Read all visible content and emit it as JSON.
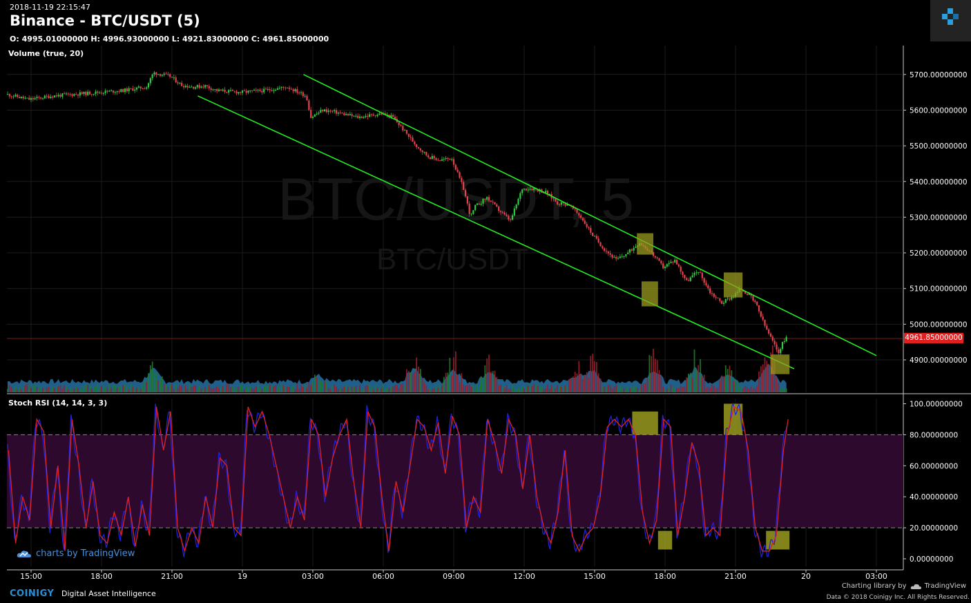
{
  "header": {
    "timestamp": "2018-11-19 22:15:47",
    "title": "Binance - BTC/USDT (5)",
    "ohlc": "O: 4995.01000000 H: 4996.93000000 L: 4921.83000000 C: 4961.85000000"
  },
  "watermark": {
    "symbol_interval": "BTC/USDT, 5",
    "symbol": "BTC/USDT"
  },
  "indicators": {
    "volume_label": "Volume (true, 20)",
    "stoch_label": "Stoch RSI (14, 14, 3, 3)"
  },
  "last_price": "4961.85000000",
  "footer": {
    "tv_brand": "charts by TradingView",
    "coinigy": "COINIGY",
    "coinigy_tagline": "Digital Asset Intelligence",
    "charting_credit": "Charting library by",
    "tv_name": "TradingView",
    "copyright": "Data © 2018 Coinigy Inc. All Rights Reserved."
  },
  "colors": {
    "up": "#2ecc40",
    "down": "#e8414e",
    "trendline": "#22ee22",
    "highlight": "#9a9a20",
    "stoch_k": "#2222dd",
    "stoch_d": "#dd2222",
    "stoch_band": "#2d0a2d",
    "volume_ma": "#2a7fb8"
  },
  "chart_data": {
    "type": "candlestick",
    "price_axis": {
      "ticks": [
        "5700.00000000",
        "5600.00000000",
        "5500.00000000",
        "5400.00000000",
        "5300.00000000",
        "5200.00000000",
        "5100.00000000",
        "5000.00000000",
        "4900.00000000"
      ],
      "ylim": [
        4850,
        5750
      ]
    },
    "stoch_axis": {
      "ticks": [
        "100.00000000",
        "80.00000000",
        "60.00000000",
        "40.00000000",
        "20.00000000",
        "0.00000000"
      ],
      "ylim": [
        -4,
        103
      ],
      "overbought": 80,
      "oversold": 20
    },
    "time_axis": {
      "labels": [
        "15:00",
        "18:00",
        "21:00",
        "19",
        "03:00",
        "06:00",
        "09:00",
        "12:00",
        "15:00",
        "18:00",
        "21:00",
        "20",
        "03:00"
      ],
      "hours": [
        15,
        18,
        21,
        24,
        27,
        30,
        33,
        36,
        39,
        42,
        45,
        48,
        51
      ]
    },
    "price_path": [
      [
        14,
        5645
      ],
      [
        15,
        5630
      ],
      [
        16,
        5640
      ],
      [
        17,
        5645
      ],
      [
        18,
        5650
      ],
      [
        19,
        5655
      ],
      [
        20,
        5665
      ],
      [
        20.3,
        5705
      ],
      [
        21,
        5695
      ],
      [
        21.5,
        5670
      ],
      [
        22,
        5665
      ],
      [
        22.5,
        5668
      ],
      [
        23,
        5655
      ],
      [
        24,
        5650
      ],
      [
        25,
        5655
      ],
      [
        26,
        5665
      ],
      [
        26.8,
        5640
      ],
      [
        27,
        5580
      ],
      [
        27.5,
        5600
      ],
      [
        28,
        5595
      ],
      [
        29,
        5580
      ],
      [
        30,
        5590
      ],
      [
        30.5,
        5580
      ],
      [
        31,
        5540
      ],
      [
        31.5,
        5500
      ],
      [
        32,
        5470
      ],
      [
        32.5,
        5460
      ],
      [
        33,
        5465
      ],
      [
        33.2,
        5430
      ],
      [
        33.5,
        5380
      ],
      [
        33.8,
        5300
      ],
      [
        34,
        5330
      ],
      [
        34.5,
        5355
      ],
      [
        35,
        5320
      ],
      [
        35.5,
        5290
      ],
      [
        36,
        5380
      ],
      [
        36.5,
        5380
      ],
      [
        37,
        5370
      ],
      [
        37.5,
        5340
      ],
      [
        38,
        5335
      ],
      [
        38.5,
        5300
      ],
      [
        39,
        5250
      ],
      [
        39.5,
        5210
      ],
      [
        40,
        5180
      ],
      [
        40.5,
        5200
      ],
      [
        41,
        5230
      ],
      [
        41.5,
        5200
      ],
      [
        42,
        5160
      ],
      [
        42.5,
        5180
      ],
      [
        43,
        5120
      ],
      [
        43.5,
        5150
      ],
      [
        44,
        5090
      ],
      [
        44.5,
        5060
      ],
      [
        45,
        5080
      ],
      [
        45.3,
        5100
      ],
      [
        45.7,
        5080
      ],
      [
        46,
        5050
      ],
      [
        46.3,
        5000
      ],
      [
        46.6,
        4960
      ],
      [
        46.9,
        4920
      ],
      [
        47.2,
        4962
      ]
    ],
    "stoch_path": [
      [
        14,
        70
      ],
      [
        14.3,
        10
      ],
      [
        14.6,
        40
      ],
      [
        14.9,
        25
      ],
      [
        15.2,
        90
      ],
      [
        15.5,
        82
      ],
      [
        15.8,
        20
      ],
      [
        16.1,
        60
      ],
      [
        16.4,
        5
      ],
      [
        16.7,
        90
      ],
      [
        17,
        60
      ],
      [
        17.3,
        20
      ],
      [
        17.6,
        50
      ],
      [
        17.9,
        15
      ],
      [
        18.2,
        10
      ],
      [
        18.5,
        30
      ],
      [
        18.8,
        15
      ],
      [
        19.1,
        40
      ],
      [
        19.4,
        8
      ],
      [
        19.7,
        35
      ],
      [
        20,
        15
      ],
      [
        20.3,
        98
      ],
      [
        20.6,
        70
      ],
      [
        20.9,
        95
      ],
      [
        21.2,
        20
      ],
      [
        21.5,
        5
      ],
      [
        21.8,
        20
      ],
      [
        22.1,
        10
      ],
      [
        22.4,
        40
      ],
      [
        22.7,
        20
      ],
      [
        23,
        65
      ],
      [
        23.3,
        60
      ],
      [
        23.6,
        20
      ],
      [
        23.9,
        15
      ],
      [
        24.2,
        98
      ],
      [
        24.5,
        85
      ],
      [
        24.8,
        95
      ],
      [
        25.1,
        80
      ],
      [
        25.4,
        60
      ],
      [
        25.7,
        40
      ],
      [
        26,
        20
      ],
      [
        26.3,
        40
      ],
      [
        26.6,
        25
      ],
      [
        26.9,
        90
      ],
      [
        27.2,
        80
      ],
      [
        27.5,
        40
      ],
      [
        27.8,
        65
      ],
      [
        28.1,
        80
      ],
      [
        28.4,
        90
      ],
      [
        28.7,
        50
      ],
      [
        29,
        20
      ],
      [
        29.3,
        95
      ],
      [
        29.6,
        85
      ],
      [
        29.9,
        40
      ],
      [
        30.2,
        5
      ],
      [
        30.5,
        50
      ],
      [
        30.8,
        30
      ],
      [
        31.1,
        60
      ],
      [
        31.4,
        90
      ],
      [
        31.7,
        85
      ],
      [
        32,
        70
      ],
      [
        32.3,
        88
      ],
      [
        32.6,
        55
      ],
      [
        32.9,
        92
      ],
      [
        33.2,
        80
      ],
      [
        33.5,
        20
      ],
      [
        33.8,
        40
      ],
      [
        34.1,
        30
      ],
      [
        34.4,
        90
      ],
      [
        34.7,
        75
      ],
      [
        35,
        55
      ],
      [
        35.3,
        90
      ],
      [
        35.6,
        80
      ],
      [
        35.9,
        45
      ],
      [
        36.2,
        80
      ],
      [
        36.5,
        40
      ],
      [
        36.8,
        20
      ],
      [
        37.1,
        10
      ],
      [
        37.4,
        30
      ],
      [
        37.7,
        70
      ],
      [
        38,
        15
      ],
      [
        38.3,
        5
      ],
      [
        38.6,
        15
      ],
      [
        38.9,
        20
      ],
      [
        39.2,
        40
      ],
      [
        39.5,
        85
      ],
      [
        39.8,
        90
      ],
      [
        40.1,
        85
      ],
      [
        40.4,
        90
      ],
      [
        40.7,
        80
      ],
      [
        41,
        30
      ],
      [
        41.3,
        10
      ],
      [
        41.6,
        25
      ],
      [
        41.9,
        90
      ],
      [
        42.2,
        85
      ],
      [
        42.5,
        15
      ],
      [
        42.8,
        40
      ],
      [
        43.1,
        75
      ],
      [
        43.4,
        60
      ],
      [
        43.7,
        15
      ],
      [
        44,
        20
      ],
      [
        44.3,
        15
      ],
      [
        44.6,
        80
      ],
      [
        44.9,
        98
      ],
      [
        45.2,
        95
      ],
      [
        45.5,
        70
      ],
      [
        45.8,
        20
      ],
      [
        46.1,
        5
      ],
      [
        46.4,
        5
      ],
      [
        46.7,
        15
      ],
      [
        47,
        70
      ],
      [
        47.2,
        90
      ]
    ],
    "volume_spikes": [
      [
        20.2,
        0.8
      ],
      [
        27.2,
        0.4
      ],
      [
        31.3,
        1.0
      ],
      [
        33,
        0.85
      ],
      [
        34.5,
        0.7
      ],
      [
        38.3,
        0.5
      ],
      [
        38.9,
        0.8
      ],
      [
        41.5,
        0.8
      ],
      [
        43.3,
        0.9
      ],
      [
        44.7,
        0.6
      ],
      [
        46.4,
        1.2
      ]
    ],
    "trendlines": [
      [
        [
          26.6,
          5700
        ],
        [
          51,
          4912
        ]
      ],
      [
        [
          22.1,
          5640
        ],
        [
          47.5,
          4875
        ]
      ]
    ],
    "highlight_boxes_price": [
      [
        [
          40.8,
          5255
        ],
        [
          41.5,
          5195
        ]
      ],
      [
        [
          41.0,
          5120
        ],
        [
          41.7,
          5050
        ]
      ],
      [
        [
          44.5,
          5145
        ],
        [
          45.3,
          5075
        ]
      ],
      [
        [
          46.5,
          4915
        ],
        [
          47.3,
          4860
        ]
      ]
    ],
    "highlight_boxes_stoch": [
      [
        [
          40.6,
          95
        ],
        [
          41.7,
          80
        ]
      ],
      [
        [
          41.7,
          18
        ],
        [
          42.3,
          6
        ]
      ],
      [
        [
          44.5,
          100
        ],
        [
          45.3,
          80
        ]
      ],
      [
        [
          46.3,
          18
        ],
        [
          47.3,
          6
        ]
      ]
    ]
  }
}
